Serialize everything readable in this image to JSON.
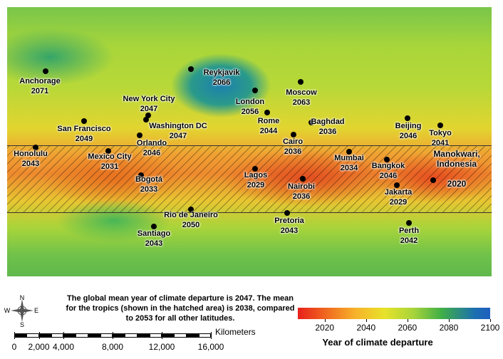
{
  "map": {
    "cities": [
      {
        "name": "Anchorage",
        "year": 2071
      },
      {
        "name": "Reykjavik",
        "year": 2066
      },
      {
        "name": "London",
        "year": 2056
      },
      {
        "name": "Moscow",
        "year": 2063
      },
      {
        "name": "New York City",
        "year": 2047
      },
      {
        "name": "Washington DC",
        "year": 2047
      },
      {
        "name": "San Francisco",
        "year": 2049
      },
      {
        "name": "Rome",
        "year": 2044
      },
      {
        "name": "Baghdad",
        "year": 2036
      },
      {
        "name": "Beijing",
        "year": 2046
      },
      {
        "name": "Tokyo",
        "year": 2041
      },
      {
        "name": "Cairo",
        "year": 2036
      },
      {
        "name": "Orlando",
        "year": 2046
      },
      {
        "name": "Honolulu",
        "year": 2043
      },
      {
        "name": "Mexico City",
        "year": 2031
      },
      {
        "name": "Mumbai",
        "year": 2034
      },
      {
        "name": "Bangkok",
        "year": 2046
      },
      {
        "name": "Manokwari, Indonesia",
        "year": 2020
      },
      {
        "name": "Bogotá",
        "year": 2033
      },
      {
        "name": "Lagos",
        "year": 2029
      },
      {
        "name": "Nairobi",
        "year": 2036
      },
      {
        "name": "Jakarta",
        "year": 2029
      },
      {
        "name": "Rio de Janeiro",
        "year": 2050
      },
      {
        "name": "Pretoria",
        "year": 2043
      },
      {
        "name": "Perth",
        "year": 2042
      },
      {
        "name": "Santiago",
        "year": 2043
      }
    ]
  },
  "caption": "The global mean year of climate departure is 2047. The mean for the tropics (shown in the hatched area) is 2038, compared to 2053 for all other latitudes.",
  "compass": {
    "n": "N",
    "s": "S",
    "e": "E",
    "w": "W"
  },
  "scale_bar": {
    "title": "Kilometers",
    "lim": [
      0,
      16000
    ],
    "ticks": [
      0,
      {
        "value": 2000,
        "label": "2,000"
      },
      {
        "value": 4000,
        "label": "4,000"
      },
      {
        "value": 8000,
        "label": "8,000"
      },
      {
        "value": 12000,
        "label": "12,000"
      },
      {
        "value": 16000,
        "label": "16,000"
      }
    ]
  },
  "colorbar": {
    "label": "Year of climate departure",
    "lim": [
      2007,
      2100
    ],
    "ticks": [
      2020,
      2040,
      2060,
      2080,
      2100
    ]
  }
}
